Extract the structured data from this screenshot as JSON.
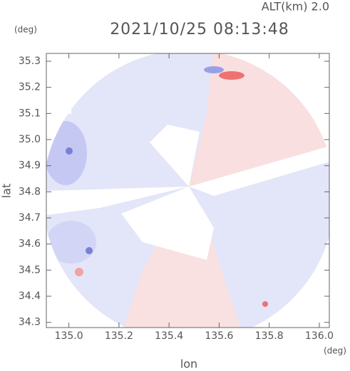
{
  "chart_data": {
    "type": "heatmap",
    "title": "2021/10/25 08:13:48",
    "subtitle": "ALT(km) 2.0",
    "x_label": "lon",
    "y_label": "lat",
    "x_unit": "(deg)",
    "y_unit": "(deg)",
    "xlim": [
      134.91,
      136.04
    ],
    "ylim": [
      34.28,
      35.33
    ],
    "xticks": [
      {
        "value": 135,
        "label": "135.0"
      },
      135.2,
      135.4,
      135.6,
      135.8,
      {
        "value": 136,
        "label": "136.0"
      }
    ],
    "yticks": [
      34.3,
      34.4,
      34.5,
      34.6,
      34.7,
      34.8,
      34.9,
      {
        "value": 35,
        "label": "35.0"
      },
      35.1,
      35.2,
      35.3
    ]
  }
}
